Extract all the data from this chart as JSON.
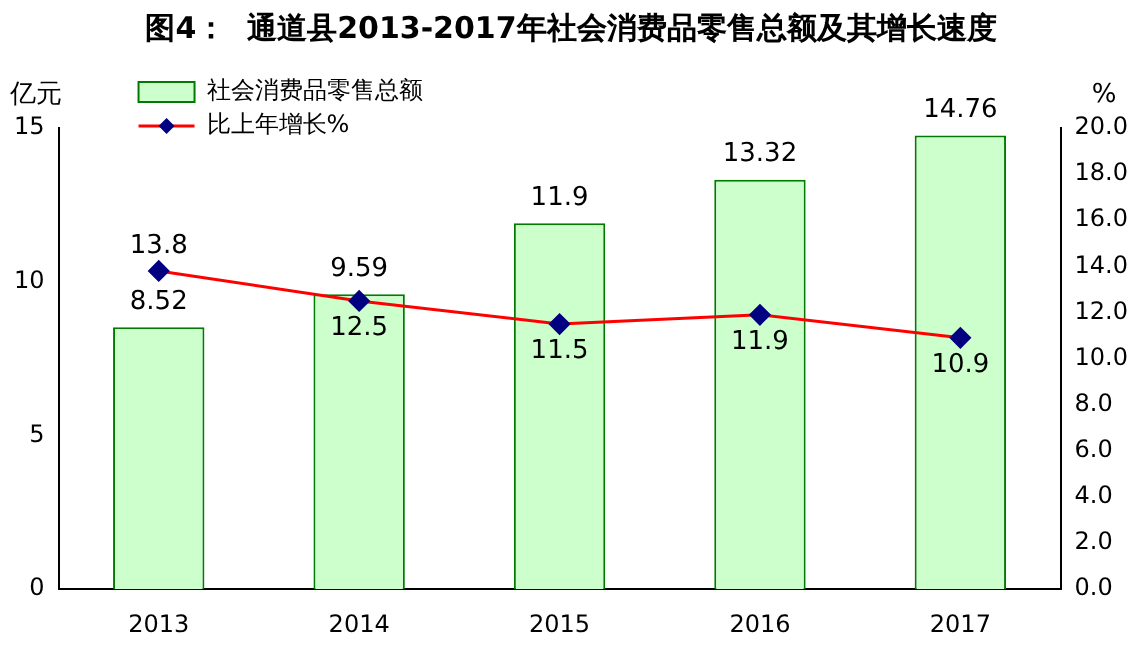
{
  "chart_data": {
    "type": "bar",
    "title": "图4：  通道县2013-2017年社会消费品零售总额及其增长速度",
    "categories": [
      "2013",
      "2014",
      "2015",
      "2016",
      "2017"
    ],
    "ylabel": "亿元",
    "y2label": "%",
    "series": [
      {
        "name": "社会消费品零售总额",
        "color": "#ccffcc",
        "values": [
          8.52,
          9.59,
          11.9,
          13.32,
          14.76
        ]
      },
      {
        "name": "比上年增长%",
        "type": "line",
        "axis": "y2",
        "color": "#ff0000",
        "marker": "diamond",
        "values": [
          13.8,
          12.5,
          11.5,
          11.9,
          10.9
        ]
      }
    ],
    "ylim": [
      0,
      15
    ],
    "yticks": [
      0,
      5,
      10,
      15
    ],
    "y2lim": [
      0,
      20
    ],
    "y2ticks": [
      {
        "value": 0,
        "label": "0.0"
      },
      {
        "value": 2,
        "label": "2.0"
      },
      {
        "value": 4,
        "label": "4.0"
      },
      {
        "value": 6,
        "label": "6.0"
      },
      {
        "value": 8,
        "label": "8.0"
      },
      {
        "value": 10,
        "label": "10.0"
      },
      {
        "value": 12,
        "label": "12.0"
      },
      {
        "value": 14,
        "label": "14.0"
      },
      {
        "value": 16,
        "label": "16.0"
      },
      {
        "value": 18,
        "label": "18.0"
      },
      {
        "value": 20,
        "label": "20.0"
      }
    ],
    "data_labels": true,
    "grid": false,
    "legend": "top left"
  }
}
